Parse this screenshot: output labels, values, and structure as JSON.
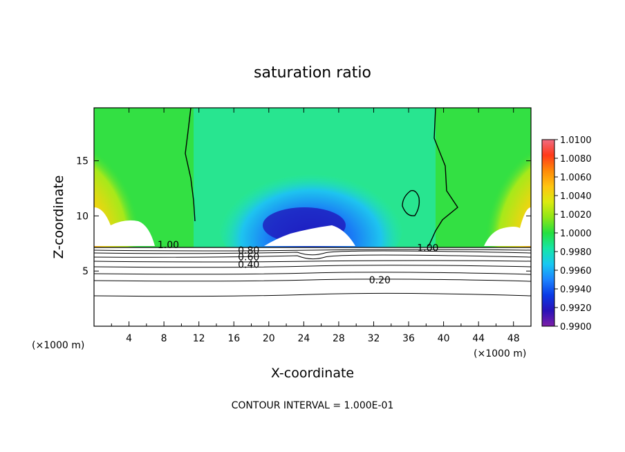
{
  "chart_data": {
    "type": "heatmap",
    "title": "saturation ratio",
    "xlabel": "X-coordinate",
    "ylabel": "Z-coordinate",
    "x_unit": "(×1000 m)",
    "z_unit": "(×1000 m)",
    "xlim": [
      0,
      50
    ],
    "ylim": [
      0,
      19.8
    ],
    "x_ticks": [
      "4",
      "8",
      "12",
      "16",
      "20",
      "24",
      "28",
      "32",
      "36",
      "40",
      "44",
      "48"
    ],
    "y_ticks": [
      "5",
      "10",
      "15"
    ],
    "colorbar": {
      "range": [
        0.99,
        1.01
      ],
      "labels": [
        "1.0100",
        "1.0080",
        "1.0060",
        "1.0040",
        "1.0020",
        "1.0000",
        "0.9980",
        "0.9960",
        "0.9940",
        "0.9920",
        "0.9900"
      ],
      "colors": [
        "#7e1fa8",
        "#2a12b8",
        "#0a3ae6",
        "#1c84ff",
        "#18c8f2",
        "#16e6a6",
        "#25e040",
        "#8fe616",
        "#dcea10",
        "#ffc410",
        "#ff8a08",
        "#ff3a1a",
        "#f06b82"
      ]
    },
    "contour_labels": [
      {
        "text": "1.00",
        "x": 8.5,
        "z": 7.4
      },
      {
        "text": "1.00",
        "x": 38.2,
        "z": 7.1
      },
      {
        "text": "0.80",
        "x": 17.7,
        "z": 6.9
      },
      {
        "text": "0.60",
        "x": 17.7,
        "z": 6.3
      },
      {
        "text": "0.40",
        "x": 17.7,
        "z": 5.6
      },
      {
        "text": "0.20",
        "x": 32.7,
        "z": 4.2
      }
    ],
    "contour_interval_text": "CONTOUR INTERVAL = 1.000E-01"
  }
}
